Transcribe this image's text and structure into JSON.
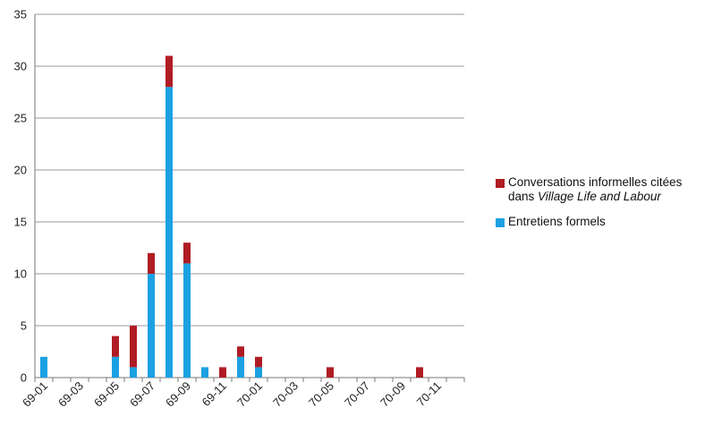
{
  "chart_data": {
    "type": "bar",
    "stacked": true,
    "categories": [
      "69-01",
      "69-02",
      "69-03",
      "69-04",
      "69-05",
      "69-06",
      "69-07",
      "69-08",
      "69-09",
      "69-10",
      "69-11",
      "69-12",
      "70-01",
      "70-02",
      "70-03",
      "70-04",
      "70-05",
      "70-06",
      "70-07",
      "70-08",
      "70-09",
      "70-10",
      "70-11",
      "70-12"
    ],
    "tick_labels": [
      "69-01",
      "69-03",
      "69-05",
      "69-07",
      "69-09",
      "69-11",
      "70-01",
      "70-03",
      "70-05",
      "70-07",
      "70-09",
      "70-11"
    ],
    "series": [
      {
        "name": "Entretiens formels",
        "color": "#1ba1e2",
        "values": [
          2,
          0,
          0,
          0,
          2,
          1,
          10,
          28,
          11,
          1,
          0,
          2,
          1,
          0,
          0,
          0,
          0,
          0,
          0,
          0,
          0,
          0,
          0,
          0
        ]
      },
      {
        "name": "Conversations informelles citées dans Village Life and Labour",
        "color": "#b01c24",
        "values": [
          0,
          0,
          0,
          0,
          2,
          4,
          2,
          3,
          2,
          0,
          1,
          1,
          1,
          0,
          0,
          0,
          1,
          0,
          0,
          0,
          0,
          1,
          0,
          0
        ]
      }
    ],
    "legend": {
      "position": "right",
      "informal_line1": "Conversations informelles citées",
      "informal_line2_prefix": "dans ",
      "informal_line2_italic": "Village Life and Labour",
      "formal": "Entretiens formels"
    },
    "ylim": [
      0,
      35
    ],
    "yticks": [
      0,
      5,
      10,
      15,
      20,
      25,
      30,
      35
    ],
    "grid": true,
    "xlabel": "",
    "ylabel": "",
    "title": ""
  }
}
